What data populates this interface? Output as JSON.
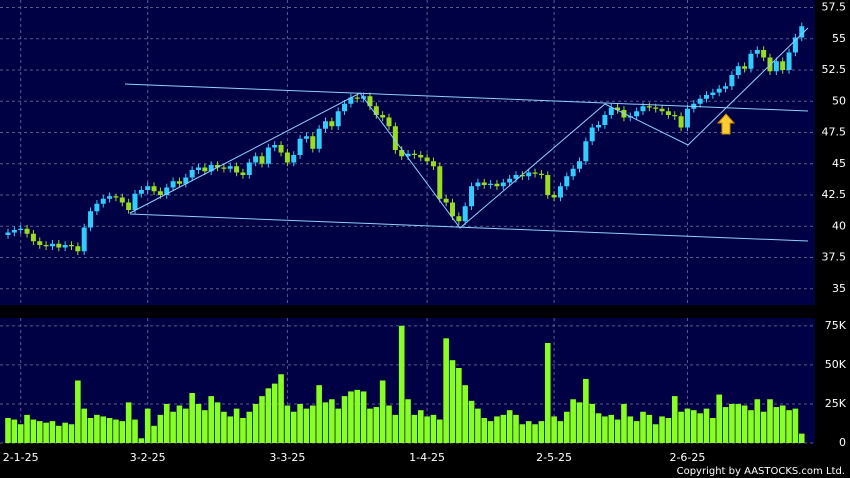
{
  "chart_data": {
    "type": "candlestick",
    "categories": [
      null,
      null,
      "2-1-25",
      null,
      null,
      null,
      null,
      null,
      null,
      null,
      null,
      null,
      null,
      null,
      null,
      null,
      null,
      null,
      null,
      null,
      null,
      null,
      "3-2-25",
      null,
      null,
      null,
      null,
      null,
      null,
      null,
      null,
      null,
      null,
      null,
      null,
      null,
      null,
      null,
      null,
      null,
      null,
      null,
      null,
      null,
      "3-3-25",
      null,
      null,
      null,
      null,
      null,
      null,
      null,
      null,
      null,
      null,
      null,
      null,
      null,
      null,
      null,
      null,
      null,
      null,
      null,
      null,
      null,
      "1-4-25",
      null,
      null,
      null,
      null,
      null,
      null,
      null,
      null,
      null,
      null,
      null,
      null,
      null,
      null,
      null,
      null,
      null,
      null,
      null,
      "2-5-25",
      null,
      null,
      null,
      null,
      null,
      null,
      null,
      null,
      null,
      null,
      null,
      null,
      null,
      null,
      null,
      null,
      null,
      null,
      null,
      null,
      "2-6-25",
      null,
      null,
      null,
      null,
      null,
      null,
      null,
      null,
      null,
      null,
      null,
      null,
      null,
      null,
      null,
      null,
      null,
      null
    ],
    "open": [
      39.3,
      39.5,
      39.7,
      39.8,
      39.4,
      38.8,
      38.5,
      38.4,
      38.6,
      38.3,
      38.5,
      38.4,
      38.0,
      39.9,
      41.2,
      41.8,
      42.2,
      42.4,
      42.3,
      41.9,
      41.3,
      42.6,
      42.9,
      43.2,
      42.8,
      42.5,
      43.1,
      43.6,
      43.4,
      43.9,
      44.5,
      44.7,
      44.4,
      44.9,
      44.7,
      44.6,
      44.8,
      44.3,
      44.1,
      45.1,
      45.6,
      45.0,
      46.3,
      46.5,
      45.9,
      45.1,
      45.7,
      47.0,
      47.2,
      46.2,
      47.8,
      48.4,
      48.0,
      49.2,
      49.8,
      50.3,
      50.2,
      50.4,
      49.6,
      48.9,
      48.7,
      48.0,
      46.1,
      45.6,
      45.8,
      45.7,
      45.5,
      45.2,
      44.8,
      42.2,
      41.9,
      40.8,
      40.4,
      41.6,
      43.2,
      43.5,
      43.3,
      43.4,
      43.2,
      43.5,
      43.8,
      44.1,
      44.0,
      44.3,
      44.2,
      44.1,
      42.5,
      42.3,
      43.2,
      44.0,
      44.6,
      45.2,
      46.8,
      47.9,
      48.1,
      48.9,
      49.5,
      49.3,
      48.7,
      48.8,
      49.2,
      49.6,
      49.5,
      49.4,
      49.2,
      48.9,
      48.8,
      47.9,
      49.4,
      49.8,
      50.2,
      50.5,
      50.7,
      51.0,
      51.2,
      52.1,
      52.8,
      52.6,
      53.8,
      54.1,
      53.5,
      52.4,
      53.2,
      52.5,
      53.9,
      55.1
    ],
    "high": [
      39.8,
      40.0,
      40.1,
      40.1,
      39.7,
      39.1,
      38.8,
      38.9,
      38.9,
      38.8,
      38.8,
      38.7,
      40.2,
      41.5,
      42.1,
      42.5,
      42.7,
      42.6,
      42.6,
      42.2,
      42.9,
      43.2,
      43.5,
      43.5,
      43.1,
      43.4,
      43.9,
      43.9,
      44.2,
      44.8,
      45.0,
      45.0,
      45.2,
      45.2,
      45.0,
      45.1,
      45.1,
      44.6,
      45.4,
      45.9,
      45.9,
      46.6,
      46.8,
      46.8,
      46.2,
      46.0,
      47.3,
      47.5,
      47.5,
      48.1,
      48.7,
      48.7,
      49.5,
      50.1,
      50.6,
      50.6,
      50.7,
      50.7,
      49.9,
      49.2,
      49.0,
      48.3,
      46.4,
      46.1,
      46.1,
      46.0,
      45.8,
      45.5,
      45.1,
      42.5,
      42.2,
      41.1,
      41.9,
      43.5,
      43.8,
      43.8,
      43.7,
      43.7,
      43.8,
      44.1,
      44.4,
      44.4,
      44.6,
      44.6,
      44.5,
      44.4,
      42.8,
      43.5,
      44.3,
      44.9,
      45.5,
      47.1,
      48.2,
      48.4,
      49.2,
      49.8,
      49.8,
      49.6,
      49.1,
      49.5,
      49.9,
      49.9,
      49.8,
      49.7,
      49.5,
      49.2,
      49.1,
      49.7,
      50.1,
      50.5,
      50.8,
      51.0,
      51.3,
      51.5,
      52.4,
      53.1,
      53.1,
      54.1,
      54.4,
      54.4,
      53.8,
      53.5,
      53.5,
      54.2,
      55.4,
      56.3
    ],
    "low": [
      39.0,
      39.2,
      39.4,
      39.1,
      38.5,
      38.2,
      38.1,
      38.1,
      38.0,
      38.0,
      38.1,
      37.7,
      37.7,
      39.6,
      40.9,
      41.5,
      41.9,
      42.0,
      41.6,
      41.0,
      41.0,
      42.3,
      42.6,
      42.5,
      42.2,
      42.2,
      42.8,
      43.1,
      43.1,
      43.6,
      44.2,
      44.1,
      44.1,
      44.4,
      44.3,
      44.3,
      44.0,
      43.8,
      43.8,
      44.8,
      44.7,
      44.7,
      46.0,
      45.6,
      44.8,
      44.8,
      45.4,
      46.7,
      45.9,
      45.9,
      47.5,
      47.7,
      47.7,
      48.9,
      49.5,
      49.9,
      49.9,
      49.3,
      48.6,
      48.4,
      47.7,
      45.8,
      45.3,
      45.3,
      45.4,
      45.2,
      44.9,
      44.5,
      41.9,
      41.6,
      40.5,
      40.1,
      40.1,
      41.3,
      42.9,
      43.0,
      43.0,
      42.9,
      42.9,
      43.2,
      43.5,
      43.7,
      43.7,
      43.9,
      43.8,
      42.2,
      42.0,
      42.0,
      42.9,
      43.7,
      44.3,
      44.9,
      46.5,
      47.6,
      47.8,
      48.6,
      49.0,
      48.4,
      48.4,
      48.5,
      48.9,
      49.2,
      49.1,
      48.9,
      48.6,
      48.5,
      47.6,
      47.6,
      49.1,
      49.5,
      49.9,
      50.2,
      50.4,
      50.7,
      50.9,
      51.8,
      52.3,
      52.3,
      53.5,
      53.2,
      52.1,
      52.1,
      52.2,
      52.2,
      53.6,
      54.8
    ],
    "close": [
      39.5,
      39.7,
      39.8,
      39.4,
      38.8,
      38.5,
      38.4,
      38.6,
      38.3,
      38.5,
      38.4,
      38.0,
      39.9,
      41.2,
      41.8,
      42.2,
      42.4,
      42.3,
      41.9,
      41.3,
      42.6,
      42.9,
      43.2,
      42.8,
      42.5,
      43.1,
      43.6,
      43.4,
      43.9,
      44.5,
      44.7,
      44.4,
      44.9,
      44.7,
      44.6,
      44.8,
      44.3,
      44.1,
      45.1,
      45.6,
      45.0,
      46.3,
      46.5,
      45.9,
      45.1,
      45.7,
      47.0,
      47.2,
      46.2,
      47.8,
      48.4,
      48.0,
      49.2,
      49.8,
      50.3,
      50.2,
      50.4,
      49.6,
      48.9,
      48.7,
      48.0,
      46.1,
      45.6,
      45.8,
      45.7,
      45.5,
      45.2,
      44.8,
      42.2,
      41.9,
      40.8,
      40.4,
      41.6,
      43.2,
      43.5,
      43.3,
      43.4,
      43.2,
      43.5,
      43.8,
      44.1,
      44.0,
      44.3,
      44.2,
      44.1,
      42.5,
      42.3,
      43.2,
      44.0,
      44.6,
      45.2,
      46.8,
      47.9,
      48.1,
      48.9,
      49.5,
      49.3,
      48.7,
      48.8,
      49.2,
      49.6,
      49.5,
      49.4,
      49.2,
      48.9,
      48.8,
      47.9,
      49.4,
      49.8,
      50.2,
      50.5,
      50.7,
      51.0,
      51.2,
      52.1,
      52.8,
      52.6,
      53.8,
      54.1,
      53.5,
      52.4,
      53.2,
      52.5,
      53.9,
      55.1,
      56.0
    ],
    "volume": [
      16000,
      15000,
      12000,
      18000,
      15000,
      14000,
      13000,
      14000,
      11000,
      13000,
      12000,
      40000,
      22000,
      16000,
      18000,
      17000,
      16000,
      15000,
      14000,
      26000,
      15000,
      3000,
      22000,
      11000,
      18000,
      25000,
      20000,
      24000,
      22000,
      32000,
      25000,
      21000,
      30000,
      26000,
      20000,
      17000,
      22000,
      16000,
      20000,
      25000,
      30000,
      35000,
      38000,
      44000,
      24000,
      20000,
      25000,
      22000,
      24000,
      37000,
      26000,
      28000,
      22000,
      30000,
      33000,
      34000,
      33000,
      22000,
      23000,
      40000,
      24000,
      18000,
      75000,
      28000,
      18000,
      21000,
      17000,
      18000,
      15000,
      67000,
      53000,
      48000,
      37000,
      27000,
      22000,
      16000,
      14000,
      17000,
      18000,
      21000,
      18000,
      12000,
      14000,
      12000,
      14000,
      64000,
      17000,
      14000,
      20000,
      28000,
      26000,
      41000,
      25000,
      19000,
      17000,
      18000,
      15000,
      25000,
      17000,
      14000,
      20000,
      18000,
      12000,
      17000,
      16000,
      30000,
      20000,
      22000,
      21000,
      19000,
      22000,
      16000,
      31000,
      23000,
      25000,
      25000,
      24000,
      21000,
      28000,
      20000,
      28000,
      23000,
      24000,
      21000,
      22000,
      6000
    ],
    "up_color": "#33ccff",
    "down_color": "#99dd22",
    "volume_color": "#88ff22",
    "ylim": [
      33.7,
      58.1
    ],
    "yticks": [
      35,
      37.5,
      40,
      42.5,
      45,
      47.5,
      50,
      52.5,
      55,
      57.5
    ],
    "y2lim": [
      0,
      80000
    ],
    "y2ticks": [
      0,
      {
        "value": 25000,
        "label": "25K"
      },
      {
        "value": 50000,
        "label": "50K"
      },
      {
        "value": 75000,
        "label": "75K"
      }
    ],
    "grid": true,
    "credit": "Copyright by AASTOCKS.com Ltd."
  }
}
